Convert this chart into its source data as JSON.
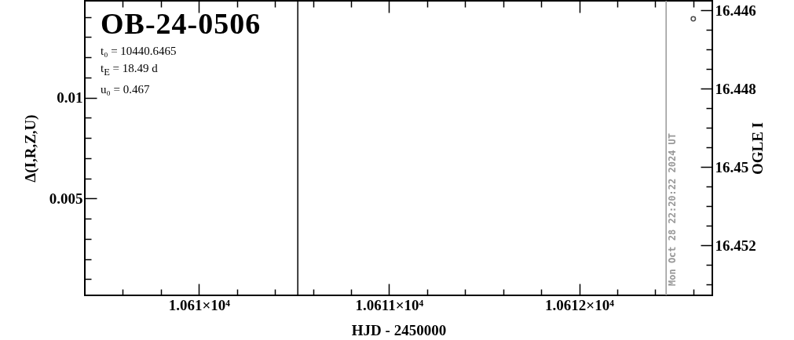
{
  "chart_data": {
    "type": "scatter",
    "title": "OB-24-0506",
    "annotations": [
      "t₀ = 10440.6465",
      "t$_{E}$ = 18.49 d",
      "u₀ = 0.467",
      {
        "text": "Mon Oct 28 22:20:22 2024 UT",
        "x": 10612.457,
        "y": 0.0002
      }
    ],
    "xlabel": "HJD - 2450000",
    "ylabel": "Δ(I,R,Z,U)",
    "y2label": "OGLE I",
    "xlim": [
      10609.4,
      10612.7
    ],
    "xticks": [
      {
        "value": 10609.6,
        "label": null
      },
      {
        "value": 10609.8,
        "label": null
      },
      {
        "value": 10610,
        "label": "1.061×10⁴"
      },
      {
        "value": 10610.2,
        "label": null
      },
      {
        "value": 10610.4,
        "label": null
      },
      {
        "value": 10610.6,
        "label": null
      },
      {
        "value": 10610.8,
        "label": null
      },
      {
        "value": 10611,
        "label": "1.0611×10⁴"
      },
      {
        "value": 10611.2,
        "label": null
      },
      {
        "value": 10611.4,
        "label": null
      },
      {
        "value": 10611.6,
        "label": null
      },
      {
        "value": 10611.8,
        "label": null
      },
      {
        "value": 10612,
        "label": "1.0612×10⁴"
      },
      {
        "value": 10612.2,
        "label": null
      },
      {
        "value": 10612.4,
        "label": null
      },
      {
        "value": 10612.6,
        "label": null
      }
    ],
    "ylim": [
      0.0002,
      0.0148
    ],
    "yticks": [
      {
        "value": 0.001,
        "label": null
      },
      {
        "value": 0.002,
        "label": null
      },
      {
        "value": 0.003,
        "label": null
      },
      {
        "value": 0.004,
        "label": null
      },
      0.005,
      {
        "value": 0.006,
        "label": null
      },
      {
        "value": 0.007,
        "label": null
      },
      {
        "value": 0.008,
        "label": null
      },
      {
        "value": 0.009,
        "label": null
      },
      0.01,
      {
        "value": 0.011,
        "label": null
      },
      {
        "value": 0.012,
        "label": null
      },
      {
        "value": 0.013,
        "label": null
      },
      {
        "value": 0.014,
        "label": null
      }
    ],
    "y2lim": [
      16.45328,
      16.44576
    ],
    "y2ticks": [
      16.446,
      {
        "value": 16.4465,
        "label": null
      },
      {
        "value": 16.447,
        "label": null
      },
      {
        "value": 16.4475,
        "label": null
      },
      16.448,
      {
        "value": 16.4485,
        "label": null
      },
      {
        "value": 16.449,
        "label": null
      },
      {
        "value": 16.4495,
        "label": null
      },
      16.45,
      {
        "value": 16.4505,
        "label": null
      },
      {
        "value": 16.451,
        "label": null
      },
      {
        "value": 16.4515,
        "label": null
      },
      16.452,
      {
        "value": 16.4525,
        "label": null
      },
      {
        "value": 16.453,
        "label": null
      }
    ],
    "series": [
      {
        "axis": "y2",
        "color": "#000000",
        "x": [
          10612.6
        ],
        "values": [
          16.44622
        ]
      }
    ],
    "marker": "circle",
    "grid": false,
    "ref_lines": [
      {
        "axis": "x",
        "value": 10610.52,
        "color": "#000000"
      },
      {
        "axis": "x",
        "value": 10612.457,
        "color": "#999999"
      }
    ]
  }
}
